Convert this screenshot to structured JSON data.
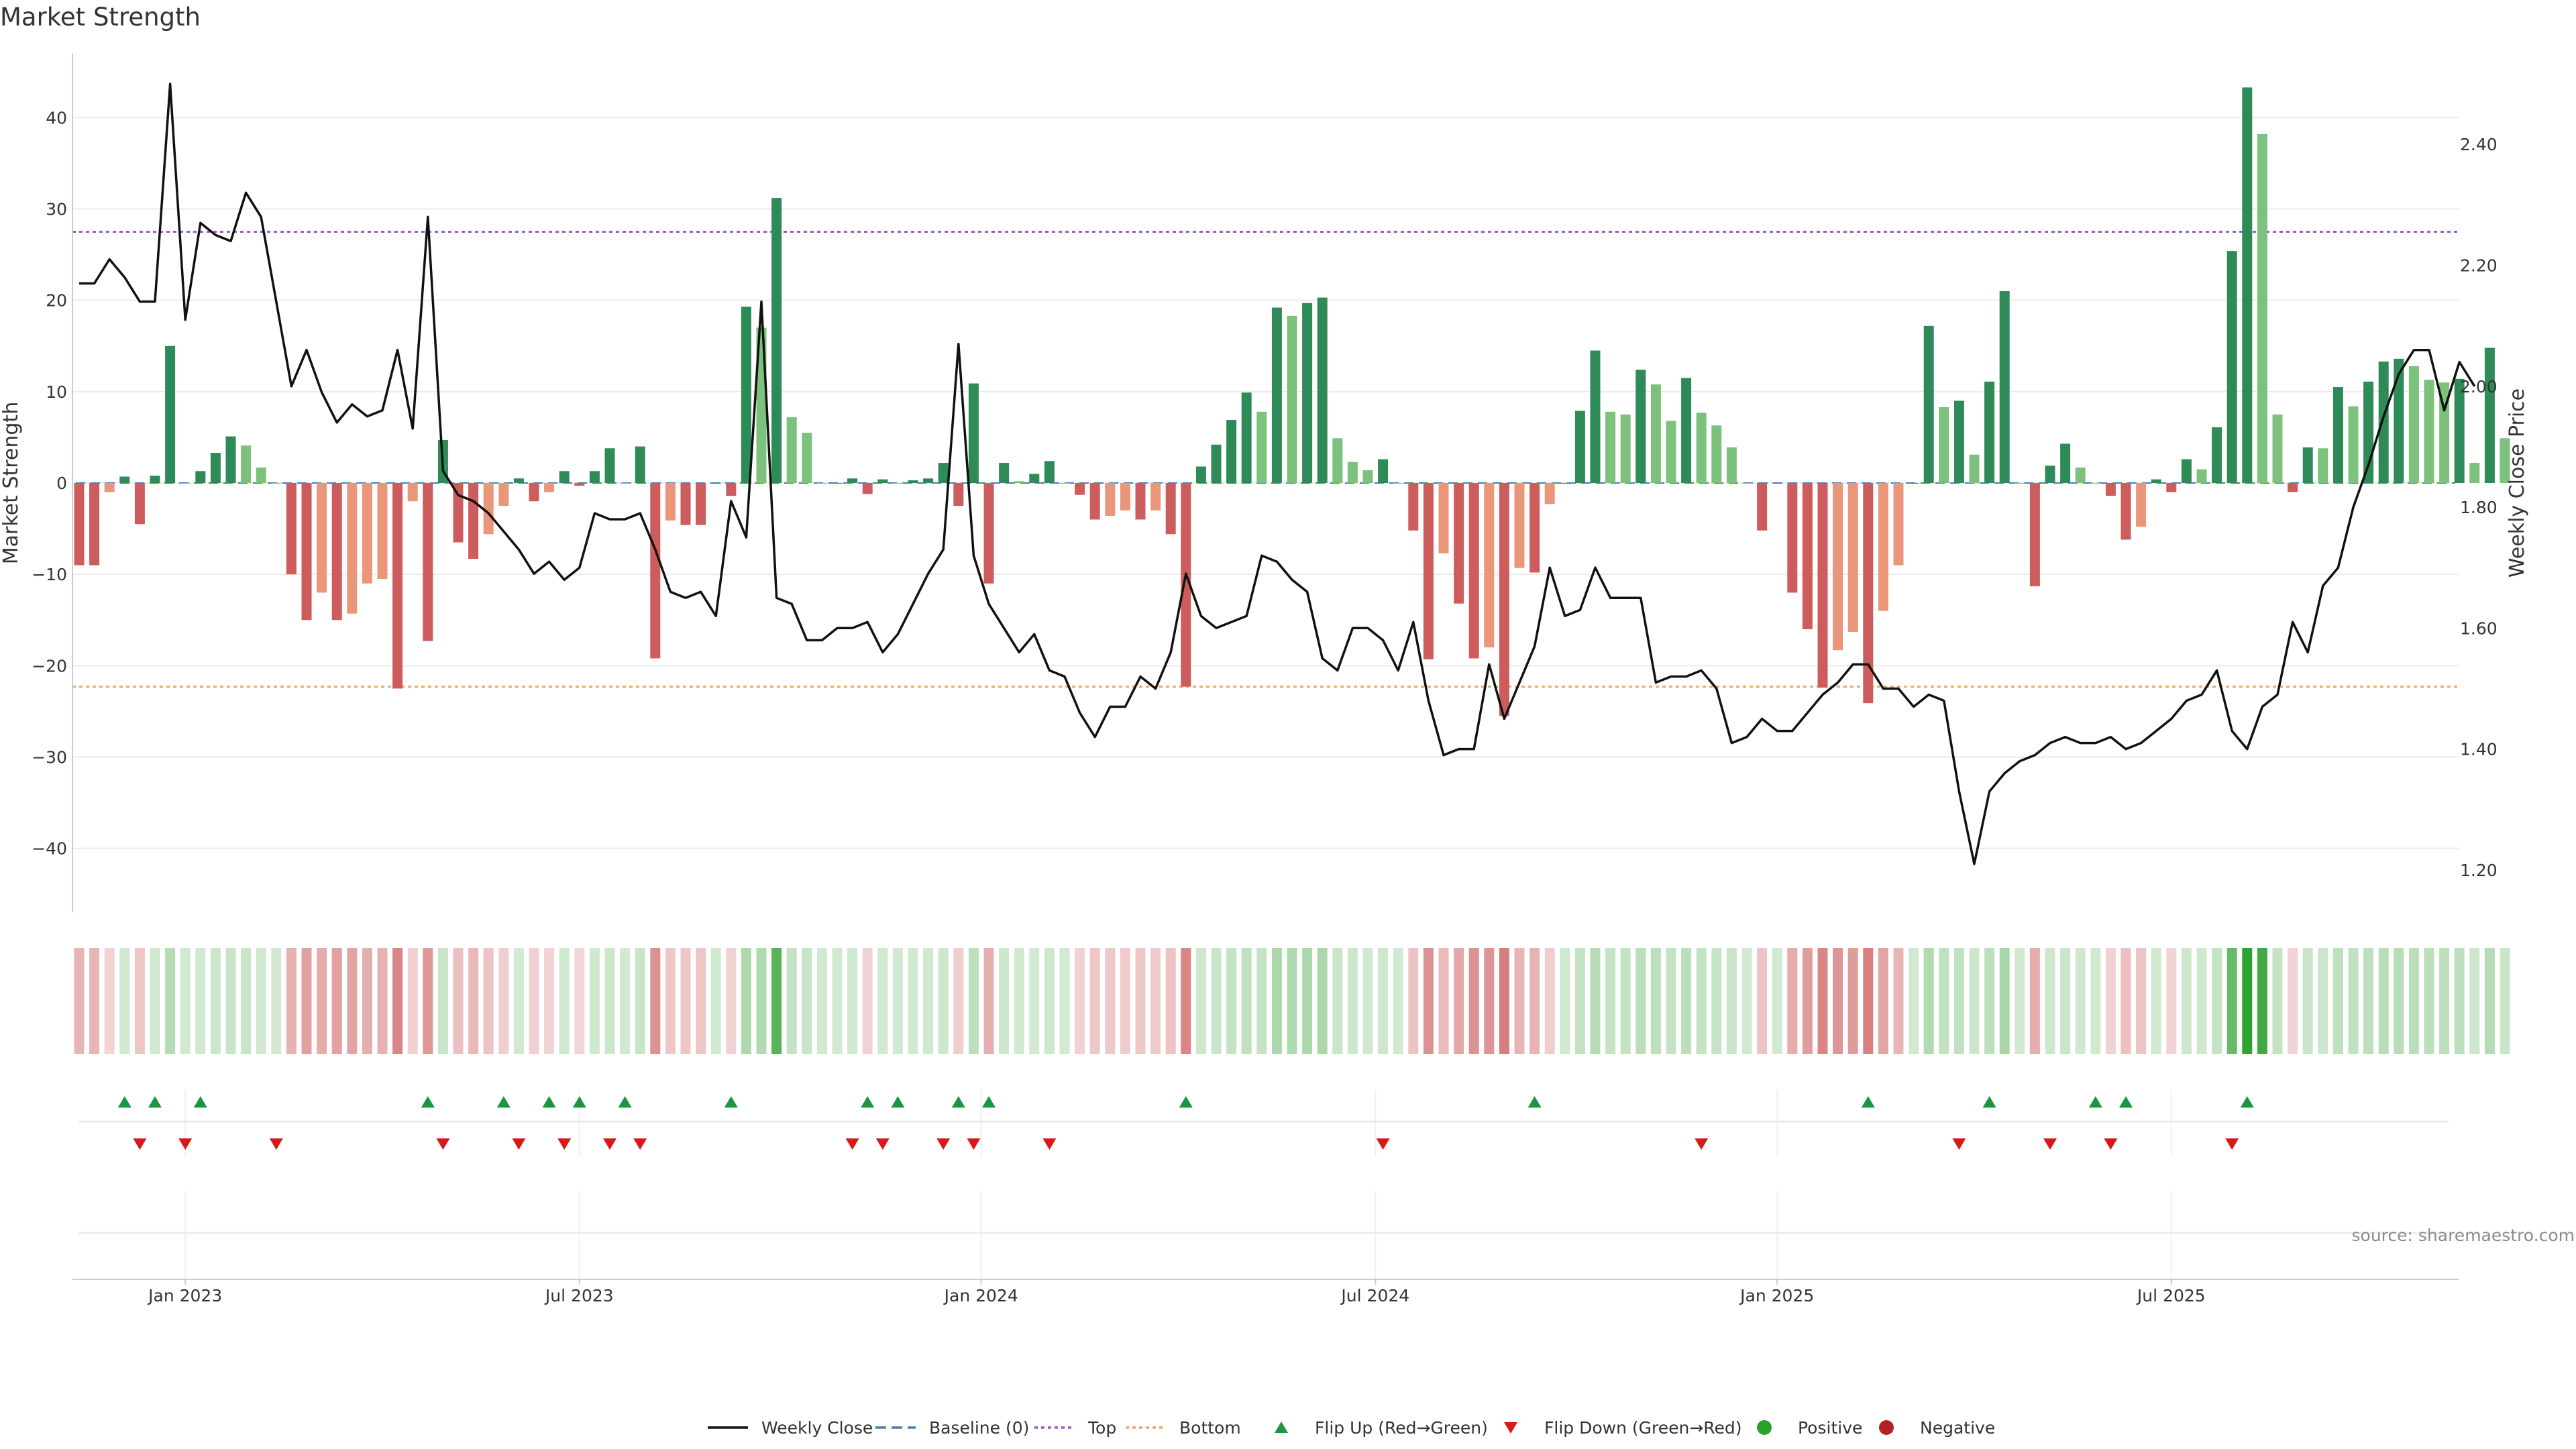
{
  "chart_data": {
    "type": "bar",
    "title": "Market Strength",
    "ylabel": "Market Strength",
    "y2label": "Weekly Close Price",
    "ylim": [
      -47,
      47
    ],
    "y2lim": [
      1.13,
      2.55
    ],
    "yticks": [
      "40",
      "30",
      "20",
      "10",
      "0",
      "−10",
      "−20",
      "−30",
      "−40"
    ],
    "yticks_values": [
      40,
      30,
      20,
      10,
      0,
      -10,
      -20,
      -30,
      -40
    ],
    "y2ticks": [
      "2.40",
      "2.20",
      "2.00",
      "1.80",
      "1.60",
      "1.40",
      "1.20"
    ],
    "y2ticks_values": [
      2.4,
      2.2,
      2.0,
      1.8,
      1.6,
      1.4,
      1.2
    ],
    "x_labels": [
      "Jan 2023",
      "Jul 2023",
      "Jan 2024",
      "Jul 2024",
      "Jan 2025",
      "Jul 2025"
    ],
    "x_label_weeks": [
      7,
      33,
      59.5,
      85.5,
      112,
      138
    ],
    "top_line": 27.5,
    "bottom_line": -22.3,
    "grid": true,
    "legend_position": "bottom",
    "series": [
      {
        "name": "Market Strength",
        "kind": "bar",
        "values": [
          -9,
          -9,
          -1,
          0.7,
          -4.5,
          0.8,
          15,
          0,
          1.3,
          3.3,
          5.1,
          4.1,
          1.7,
          0,
          -10,
          -15,
          -12,
          -15,
          -14.3,
          -11,
          -10.5,
          -22.5,
          -2,
          -17.3,
          4.7,
          -6.5,
          -8.3,
          -5.6,
          -2.5,
          0.5,
          -2,
          -1,
          1.3,
          -0.3,
          1.3,
          3.8,
          0,
          4,
          -19.2,
          -4.1,
          -4.6,
          -4.6,
          0,
          -1.4,
          19.3,
          17,
          31.2,
          7.2,
          5.5,
          0,
          0,
          0.5,
          -1.2,
          0.4,
          0,
          0.3,
          0.5,
          2.2,
          -2.5,
          10.9,
          -11,
          2.2,
          0.2,
          1,
          2.4,
          0,
          -1.3,
          -4,
          -3.6,
          -3,
          -4,
          -3,
          -5.6,
          -22.3,
          1.8,
          4.2,
          6.9,
          9.9,
          7.8,
          19.2,
          18.3,
          19.7,
          20.3,
          4.9,
          2.3,
          1.4,
          2.6,
          0,
          -5.2,
          -19.3,
          -7.7,
          -13.2,
          -19.2,
          -18,
          -25.5,
          -9.3,
          -9.8,
          -2.3,
          0,
          7.9,
          14.5,
          7.8,
          7.5,
          12.4,
          10.8,
          6.8,
          11.5,
          7.7,
          6.3,
          3.9,
          0,
          -5.2,
          0,
          -12,
          -16,
          -22.4,
          -18.3,
          -16.3,
          -24.1,
          -14,
          -9,
          0,
          17.2,
          8.3,
          9,
          3.1,
          11.1,
          21,
          0,
          -11.3,
          1.9,
          4.3,
          1.7,
          0,
          -1.4,
          -6.2,
          -4.8,
          0.4,
          -1,
          2.6,
          1.5,
          6.1,
          25.4,
          43.3,
          38.2,
          7.5,
          -1,
          3.9,
          3.8,
          10.5,
          8.4,
          11.1,
          13.3,
          13.6,
          12.8,
          11.3,
          11,
          11.4,
          2.2,
          14.8,
          4.9
        ]
      },
      {
        "name": "Weekly Close",
        "kind": "line",
        "axis": "right",
        "values": [
          2.17,
          2.17,
          2.21,
          2.18,
          2.14,
          2.14,
          2.5,
          2.11,
          2.27,
          2.25,
          2.24,
          2.32,
          2.28,
          2.14,
          2.0,
          2.06,
          1.99,
          1.94,
          1.97,
          1.95,
          1.96,
          2.06,
          1.93,
          2.28,
          1.86,
          1.82,
          1.81,
          1.79,
          1.76,
          1.73,
          1.69,
          1.71,
          1.68,
          1.7,
          1.79,
          1.78,
          1.78,
          1.79,
          1.73,
          1.66,
          1.65,
          1.66,
          1.62,
          1.81,
          1.75,
          2.14,
          1.65,
          1.64,
          1.58,
          1.58,
          1.6,
          1.6,
          1.61,
          1.56,
          1.59,
          1.64,
          1.69,
          1.73,
          2.07,
          1.72,
          1.64,
          1.6,
          1.56,
          1.59,
          1.53,
          1.52,
          1.46,
          1.42,
          1.47,
          1.47,
          1.52,
          1.5,
          1.56,
          1.69,
          1.62,
          1.6,
          1.61,
          1.62,
          1.72,
          1.71,
          1.68,
          1.66,
          1.55,
          1.53,
          1.6,
          1.6,
          1.58,
          1.53,
          1.61,
          1.48,
          1.39,
          1.4,
          1.4,
          1.54,
          1.45,
          1.51,
          1.57,
          1.7,
          1.62,
          1.63,
          1.7,
          1.65,
          1.65,
          1.65,
          1.51,
          1.52,
          1.52,
          1.53,
          1.5,
          1.41,
          1.42,
          1.45,
          1.43,
          1.43,
          1.46,
          1.49,
          1.51,
          1.54,
          1.54,
          1.5,
          1.5,
          1.47,
          1.49,
          1.48,
          1.33,
          1.21,
          1.33,
          1.36,
          1.38,
          1.39,
          1.41,
          1.42,
          1.41,
          1.41,
          1.42,
          1.4,
          1.41,
          1.43,
          1.45,
          1.48,
          1.49,
          1.53,
          1.43,
          1.4,
          1.47,
          1.49,
          1.61,
          1.56,
          1.67,
          1.7,
          1.8,
          1.87,
          1.95,
          2.02,
          2.06,
          2.06,
          1.96,
          2.04,
          2.0
        ]
      }
    ],
    "flip_up_weeks": [
      3,
      5,
      8,
      23,
      28,
      31,
      33,
      36,
      43,
      52,
      54,
      58,
      60,
      73,
      96,
      118,
      126,
      133,
      135,
      143
    ],
    "flip_down_weeks": [
      4,
      7,
      13,
      24,
      29,
      32,
      35,
      37,
      51,
      53,
      57,
      59,
      64,
      86,
      107,
      124,
      130,
      134,
      142
    ],
    "legend": [
      "Weekly Close",
      "Baseline (0)",
      "Top",
      "Bottom",
      "Flip Up (Red→Green)",
      "Flip Down (Green→Red)",
      "Positive",
      "Negative"
    ],
    "source": "source: sharemaestro.com",
    "colors": {
      "pos_strong": "#2e8b57",
      "pos_light": "#7cc17c",
      "neg_strong": "#cd5c5c",
      "neg_light": "#e9967a",
      "line": "#111111",
      "top": "#9b59d0",
      "bottom": "#f4a460",
      "baseline": "#4a7fb0",
      "flip_up": "#1a9641",
      "flip_down": "#d7191c",
      "dot_pos": "#2ca02c",
      "dot_neg": "#b22222",
      "grid": "#ebebeb",
      "axis": "#cccccc"
    }
  }
}
